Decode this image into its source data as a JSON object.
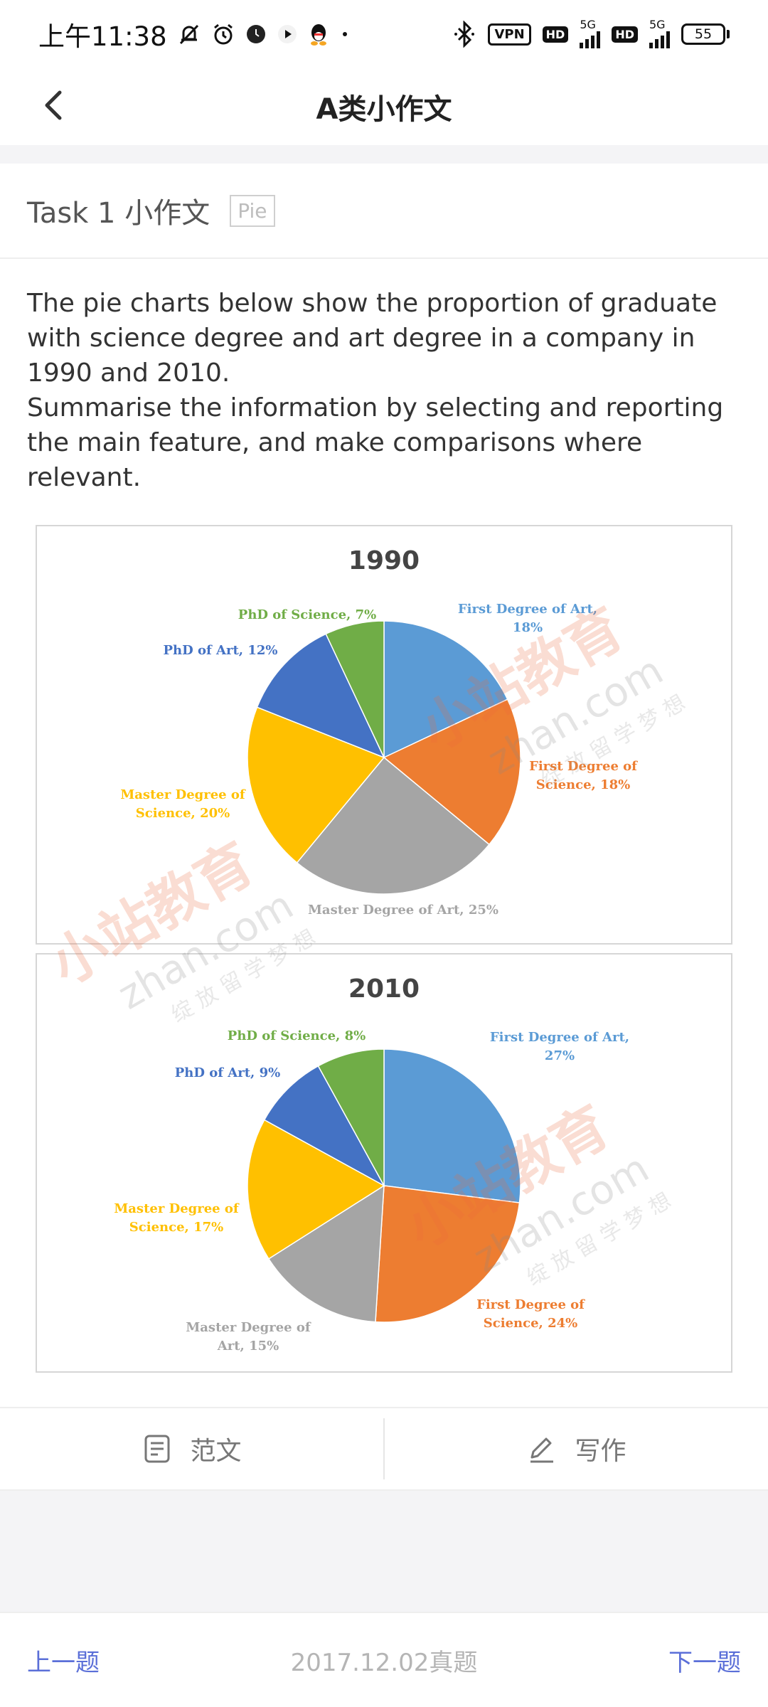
{
  "status_bar": {
    "time": "上午11:38",
    "vpn": "VPN",
    "hd1": "HD",
    "net1": "5G",
    "hd2": "HD",
    "net2": "5G",
    "battery": "55"
  },
  "nav": {
    "title": "A类小作文"
  },
  "task": {
    "title": "Task 1 小作文",
    "tag": "Pie"
  },
  "prompt": {
    "line1": "The pie charts below show the proportion of graduate with science degree and art degree in a company in 1990 and 2010.",
    "line2": "Summarise the information by selecting and reporting the main feature, and make comparisons where relevant."
  },
  "watermark": {
    "brand": "小站教育",
    "domain": "zhan.com",
    "slogan": "绽 放 留 学 梦 想"
  },
  "colors": {
    "first_art": "#5b9bd5",
    "first_sci": "#ed7d31",
    "master_art": "#a5a5a5",
    "master_sci": "#ffc000",
    "phd_art": "#4472c4",
    "phd_sci": "#70ad47",
    "accent": "#5b6fd8"
  },
  "chart_data": [
    {
      "type": "pie",
      "title": "1990",
      "categories": [
        "First Degree of Art",
        "First Degree of Science",
        "Master Degree of Art",
        "Master Degree of Science",
        "PhD of Art",
        "PhD of Science"
      ],
      "values": [
        18,
        18,
        25,
        20,
        12,
        7
      ],
      "labels": [
        [
          "First Degree of Art,",
          "18%"
        ],
        [
          "First Degree of",
          "Science, 18%"
        ],
        [
          "Master Degree of Art, 25%"
        ],
        [
          "Master Degree of",
          "Science, 20%"
        ],
        [
          "PhD of Art, 12%"
        ],
        [
          "PhD of Science, 7%"
        ]
      ]
    },
    {
      "type": "pie",
      "title": "2010",
      "categories": [
        "First Degree of Art",
        "First Degree of Science",
        "Master Degree of Art",
        "Master Degree of Science",
        "PhD of Art",
        "PhD of Science"
      ],
      "values": [
        27,
        24,
        15,
        17,
        9,
        8
      ],
      "labels": [
        [
          "First Degree of Art,",
          "27%"
        ],
        [
          "First Degree of",
          "Science, 24%"
        ],
        [
          "Master Degree of",
          "Art, 15%"
        ],
        [
          "Master Degree of",
          "Science, 17%"
        ],
        [
          "PhD of Art, 9%"
        ],
        [
          "PhD of Science, 8%"
        ]
      ]
    }
  ],
  "actions": {
    "sample": "范文",
    "write": "写作"
  },
  "footer": {
    "prev": "上一题",
    "source": "2017.12.02真题",
    "next": "下一题"
  }
}
